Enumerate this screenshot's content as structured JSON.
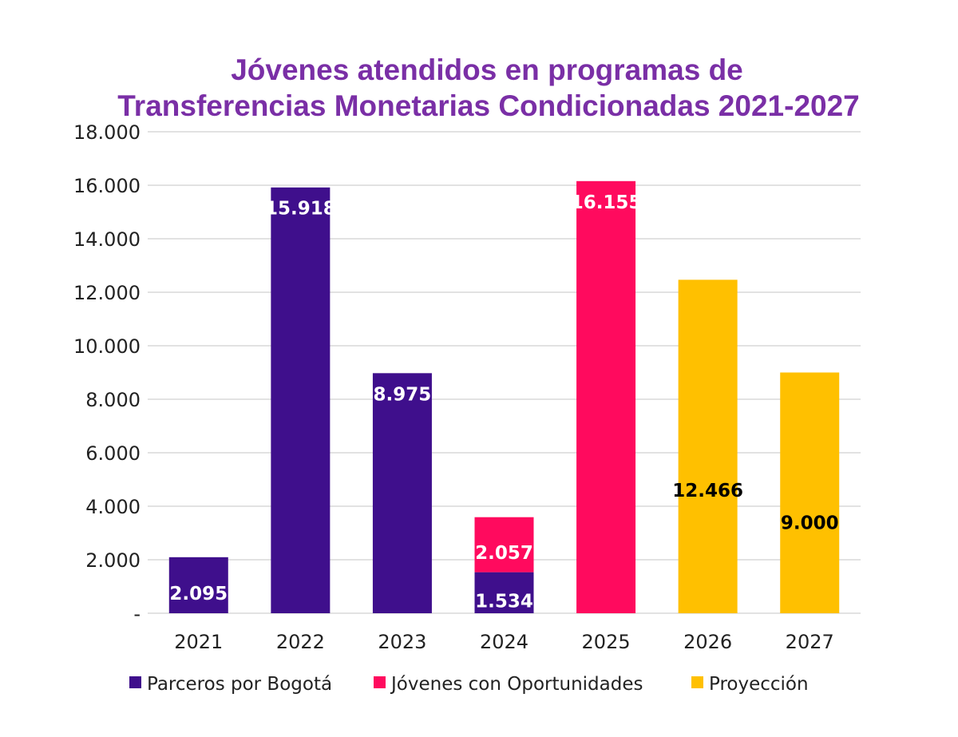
{
  "chart_data": {
    "type": "bar",
    "stacked": true,
    "title_lines": [
      "Jóvenes atendidos en programas de",
      "Transferencias Monetarias Condicionadas 2021-2027"
    ],
    "categories": [
      "2021",
      "2022",
      "2023",
      "2024",
      "2025",
      "2026",
      "2027"
    ],
    "series": [
      {
        "name": "Parceros por Bogotá",
        "color": "#3f0f8c",
        "label_color": "#ffffff",
        "values": [
          2095,
          15918,
          8975,
          1534,
          0,
          0,
          0
        ],
        "labels": [
          "2.095",
          "15.918",
          "8.975",
          "1.534",
          "",
          "",
          ""
        ]
      },
      {
        "name": "Jóvenes con Oportunidades",
        "color": "#ff0a5e",
        "label_color": "#ffffff",
        "values": [
          0,
          0,
          0,
          2057,
          16155,
          0,
          0
        ],
        "labels": [
          "",
          "",
          "",
          "2.057",
          "16.155",
          "",
          ""
        ]
      },
      {
        "name": "Proyección",
        "color": "#ffc000",
        "label_color": "#000000",
        "values": [
          0,
          0,
          0,
          0,
          0,
          12466,
          9000
        ],
        "labels": [
          "",
          "",
          "",
          "",
          "",
          "12.466",
          "9.000"
        ]
      }
    ],
    "y_ticks": [
      0,
      2000,
      4000,
      6000,
      8000,
      10000,
      12000,
      14000,
      16000,
      18000
    ],
    "y_tick_labels": [
      "-",
      "2.000",
      "4.000",
      "6.000",
      "8.000",
      "10.000",
      "12.000",
      "14.000",
      "16.000",
      "18.000"
    ],
    "ylim": [
      0,
      18000
    ],
    "grid": true,
    "legend_position": "bottom"
  }
}
